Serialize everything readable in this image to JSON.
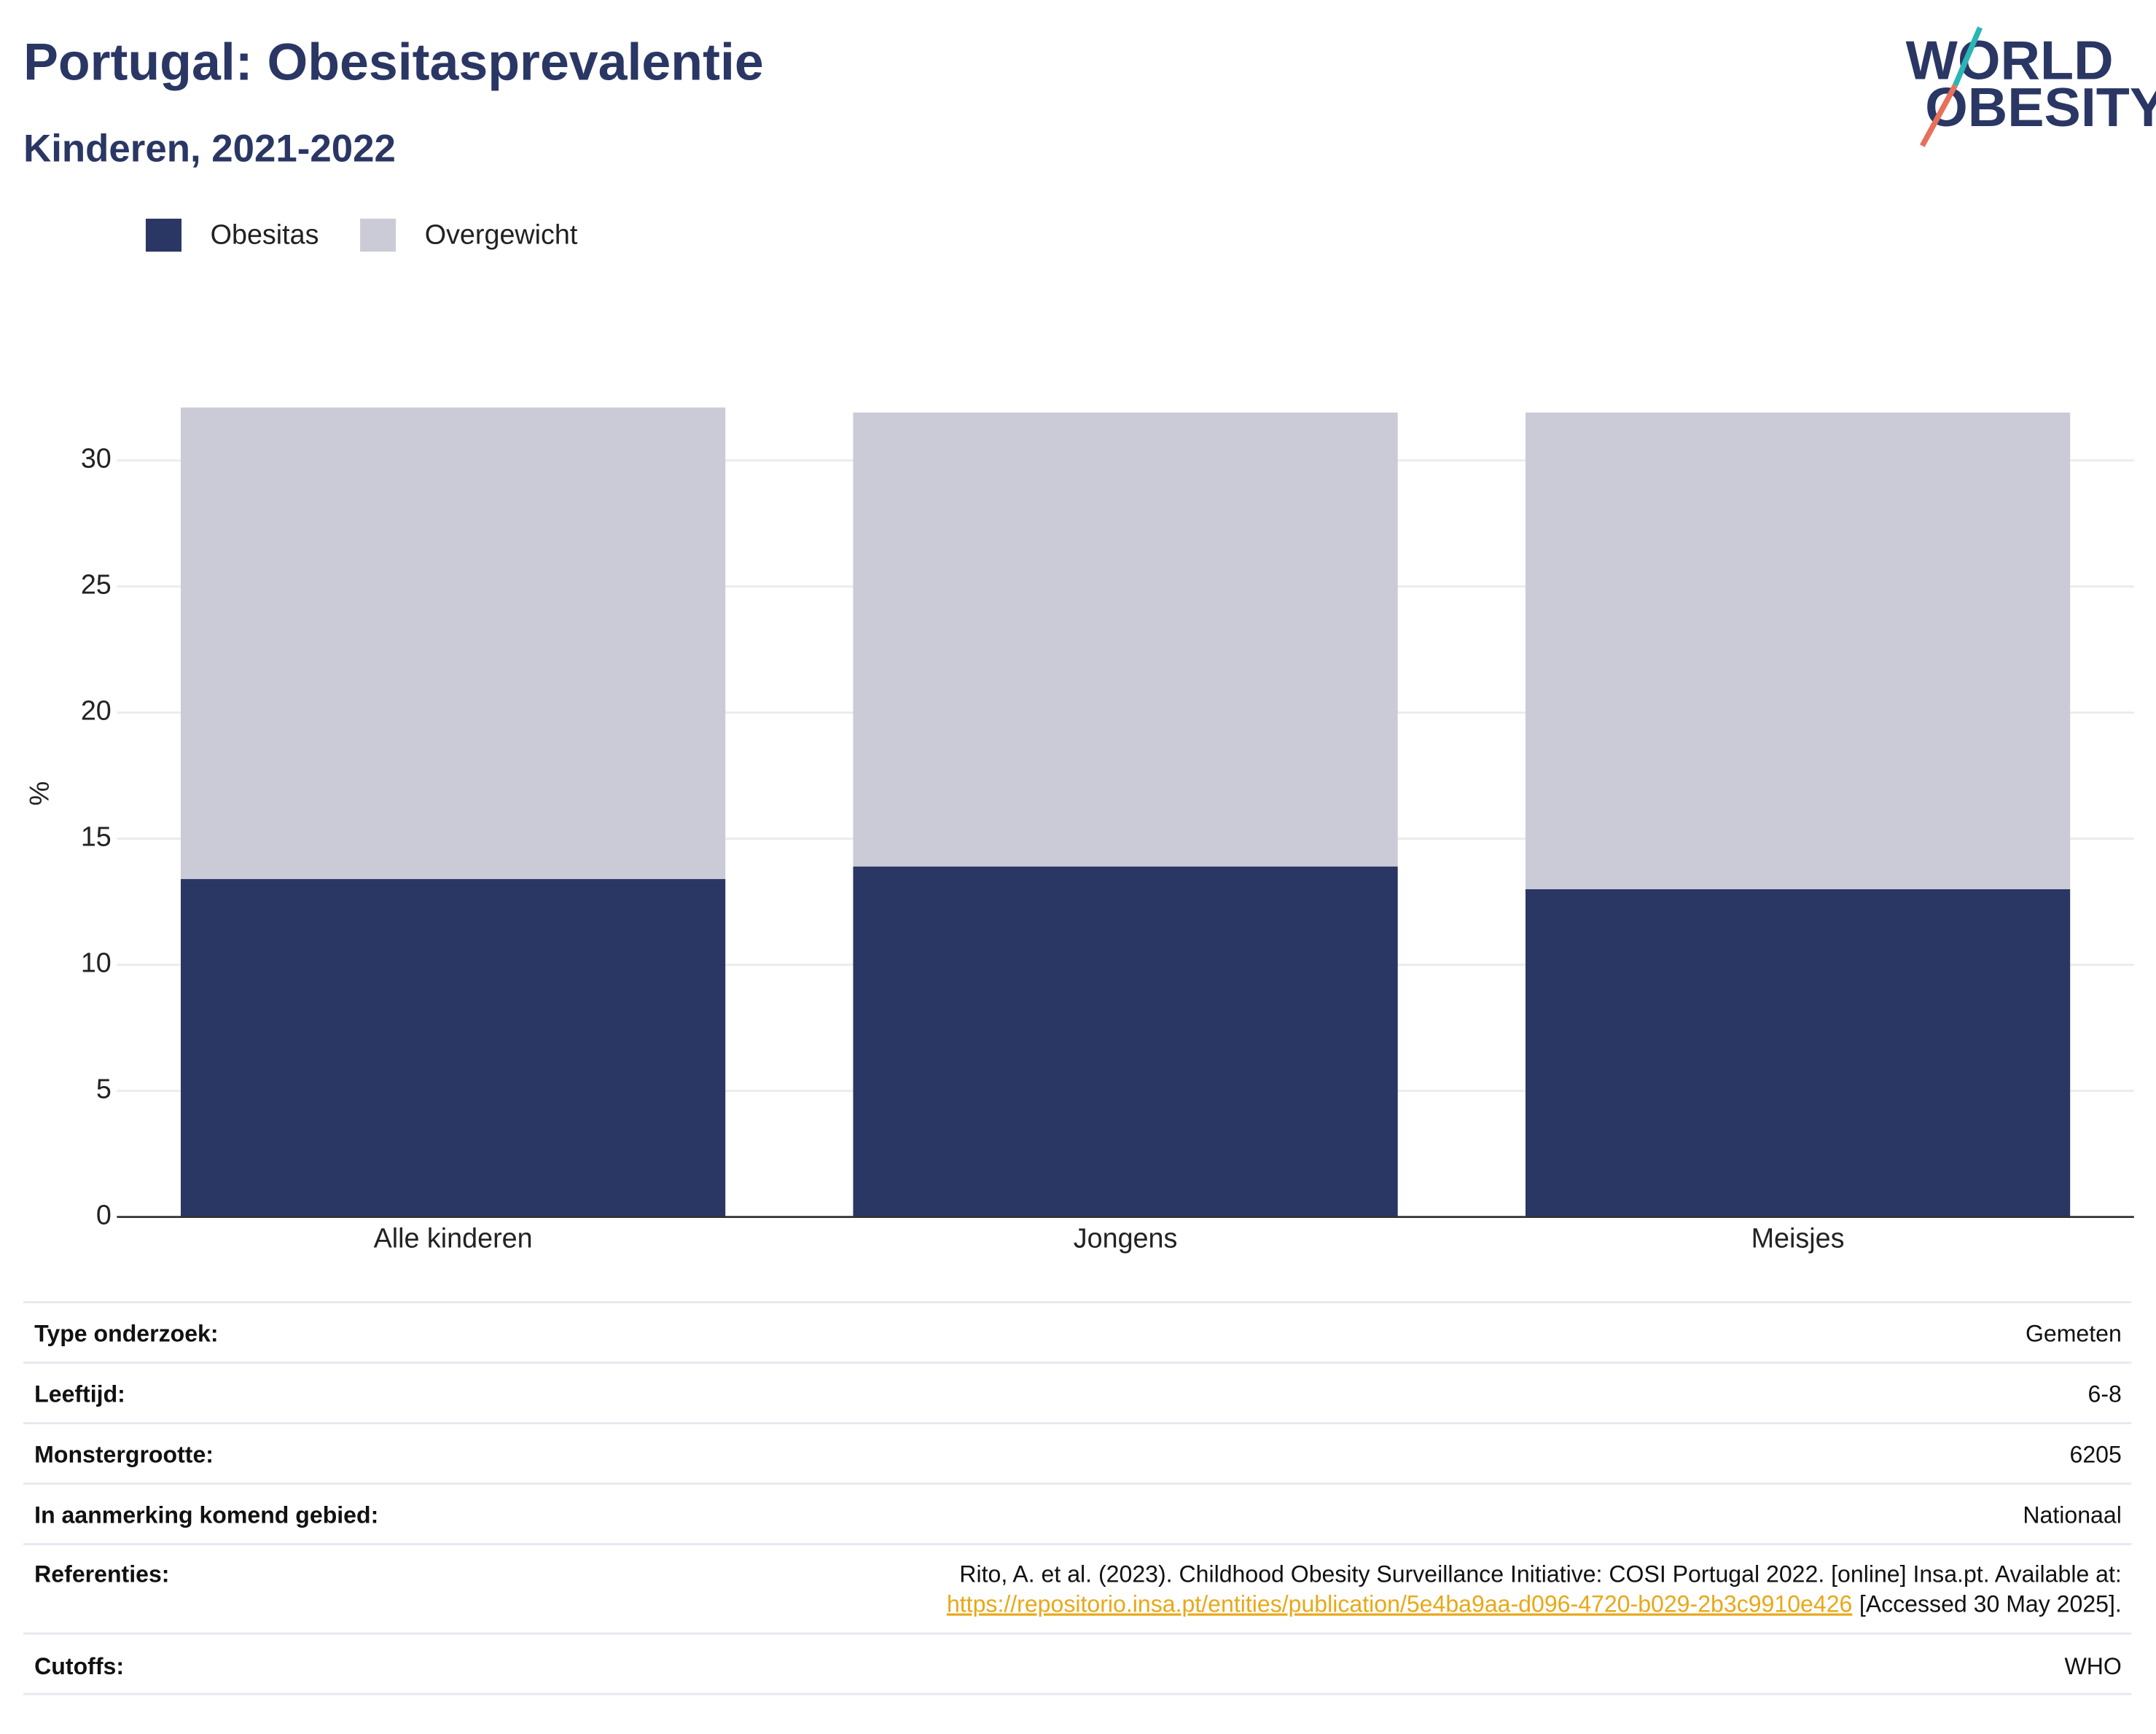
{
  "chart_data": {
    "type": "stacked_bar",
    "title": "Portugal: Obesitasprevalentie",
    "subtitle": "Kinderen, 2021-2022",
    "y_label": "%",
    "categories": [
      "Alle kinderen",
      "Jongens",
      "Meisjes"
    ],
    "series": [
      {
        "name": "Obesitas",
        "color": "#2a3764",
        "values": [
          13.4,
          13.9,
          13.0
        ]
      },
      {
        "name": "Overgewicht",
        "color": "#cacbd7",
        "values": [
          18.7,
          18.0,
          18.9
        ]
      }
    ],
    "ylim": [
      0,
      32.5
    ],
    "yticks": [
      0,
      5,
      10,
      15,
      20,
      25,
      30
    ],
    "grid": true,
    "legend": "top-left"
  },
  "logo": {
    "line1": "WORLD",
    "line2": "OBESITY"
  },
  "info": {
    "rows": [
      {
        "label": "Type onderzoek:",
        "value": "Gemeten"
      },
      {
        "label": "Leeftijd:",
        "value": "6-8"
      },
      {
        "label": "Monstergrootte:",
        "value": "6205"
      },
      {
        "label": "In aanmerking komend gebied:",
        "value": "Nationaal"
      }
    ],
    "reference": {
      "label": "Referenties:",
      "text": "Rito, A. et al. (2023). Childhood Obesity Surveillance Initiative: COSI Portugal 2022. [online] Insa.pt. Available at:",
      "link": "https://repositorio.insa.pt/entities/publication/5e4ba9aa-d096-4720-b029-2b3c9910e426",
      "after": "[Accessed 30 May 2025]."
    },
    "cutoffs": {
      "label": "Cutoffs:",
      "value": "WHO"
    }
  }
}
